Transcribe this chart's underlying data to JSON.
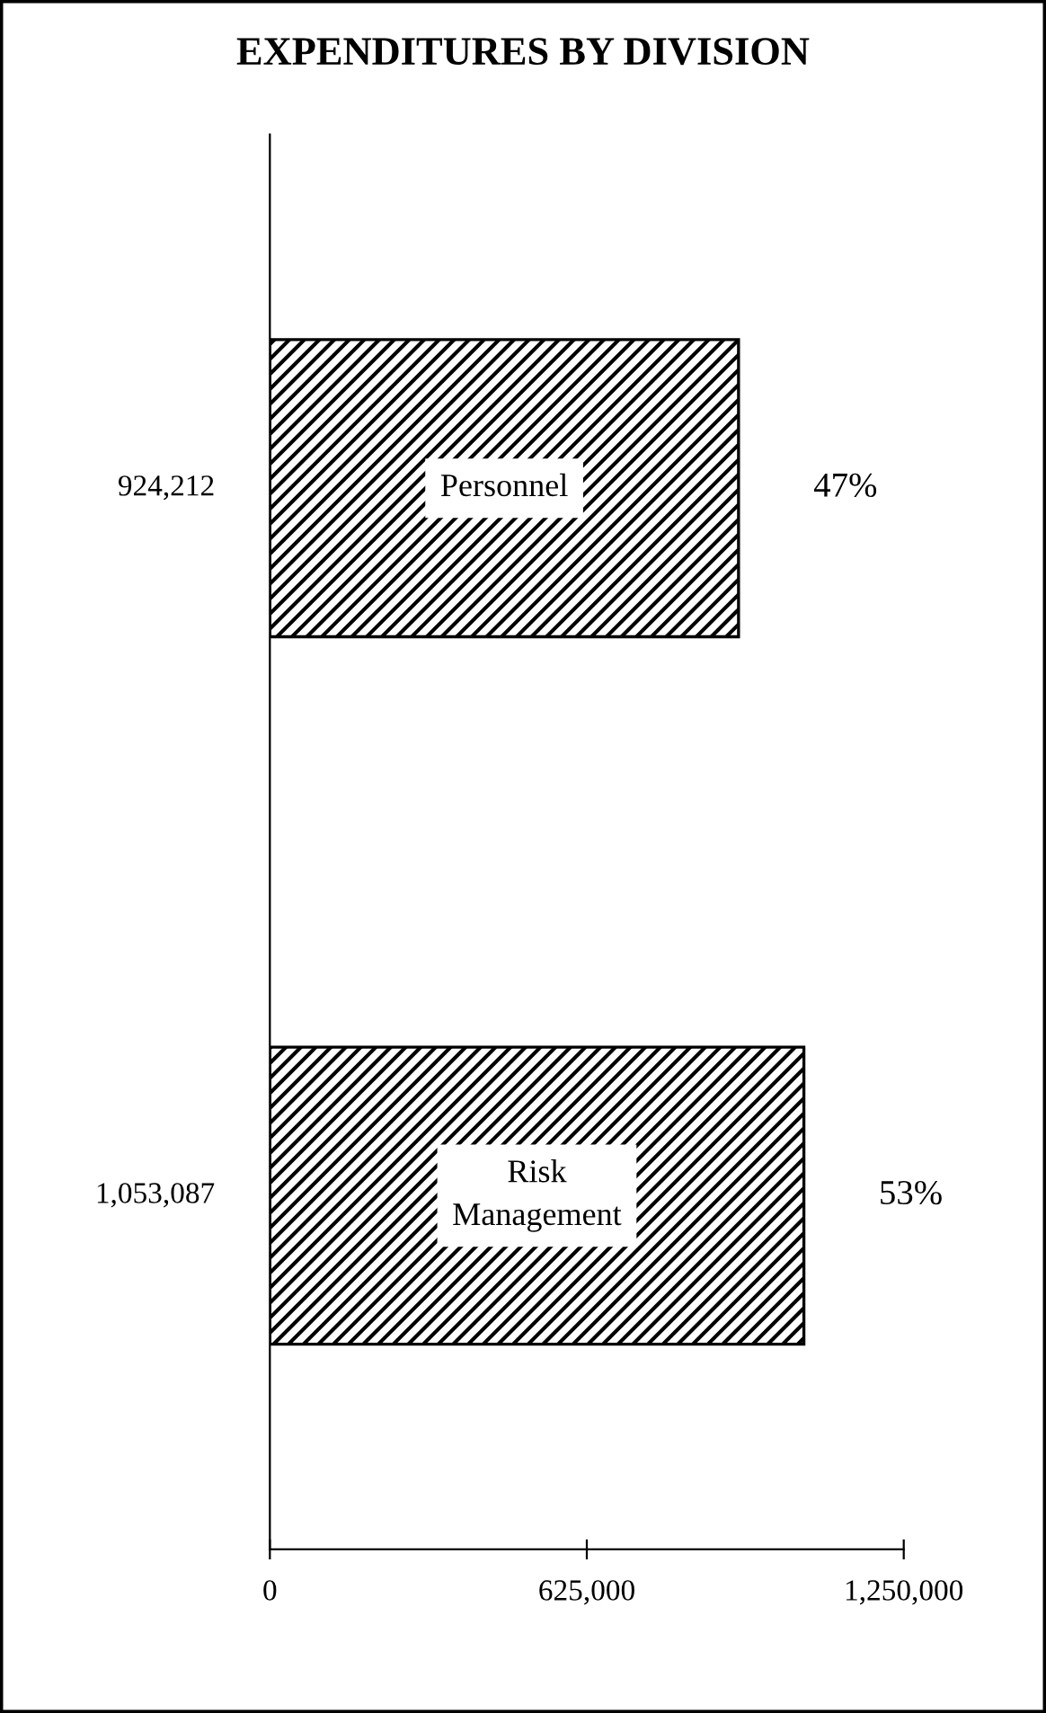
{
  "chart_data": {
    "type": "bar",
    "orientation": "horizontal",
    "title": "EXPENDITURES BY DIVISION",
    "categories": [
      "Personnel",
      "Risk Management"
    ],
    "values": [
      924212,
      1053087
    ],
    "value_labels": [
      "924,212",
      "1,053,087"
    ],
    "color": "#000000",
    "annotations": [
      "47%",
      "53%"
    ],
    "xlim": [
      0,
      1250000
    ],
    "xticks": [
      {
        "value": 0,
        "label": "0"
      },
      {
        "value": 625000,
        "label": "625,000"
      },
      {
        "value": 1250000,
        "label": "1,250,000"
      }
    ],
    "grid": false
  }
}
